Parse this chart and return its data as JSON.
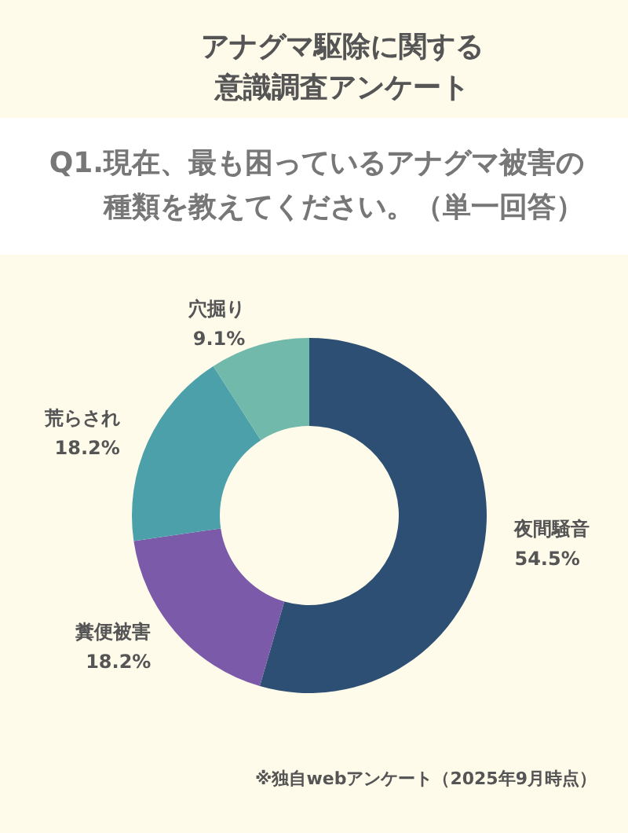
{
  "chart_data": {
    "type": "donut",
    "title": "アナグマ駆除に関する意識調査アンケート",
    "subtitle": "Q1.現在、最も困っているアナグマ被害の種類を教えてください。（単一回答）",
    "categories": [
      "夜間騒音",
      "糞便被害",
      "荒らされ",
      "穴掘り"
    ],
    "values": [
      54.5,
      18.2,
      18.2,
      9.1
    ],
    "colors": [
      "#2d4f73",
      "#7b5aa9",
      "#4ca0a9",
      "#71b9aa"
    ],
    "value_labels": [
      "54.5%",
      "18.2%",
      "18.2%",
      "9.1%"
    ],
    "annotations": [
      "※独自webアンケート（2025年9月時点）"
    ]
  }
}
